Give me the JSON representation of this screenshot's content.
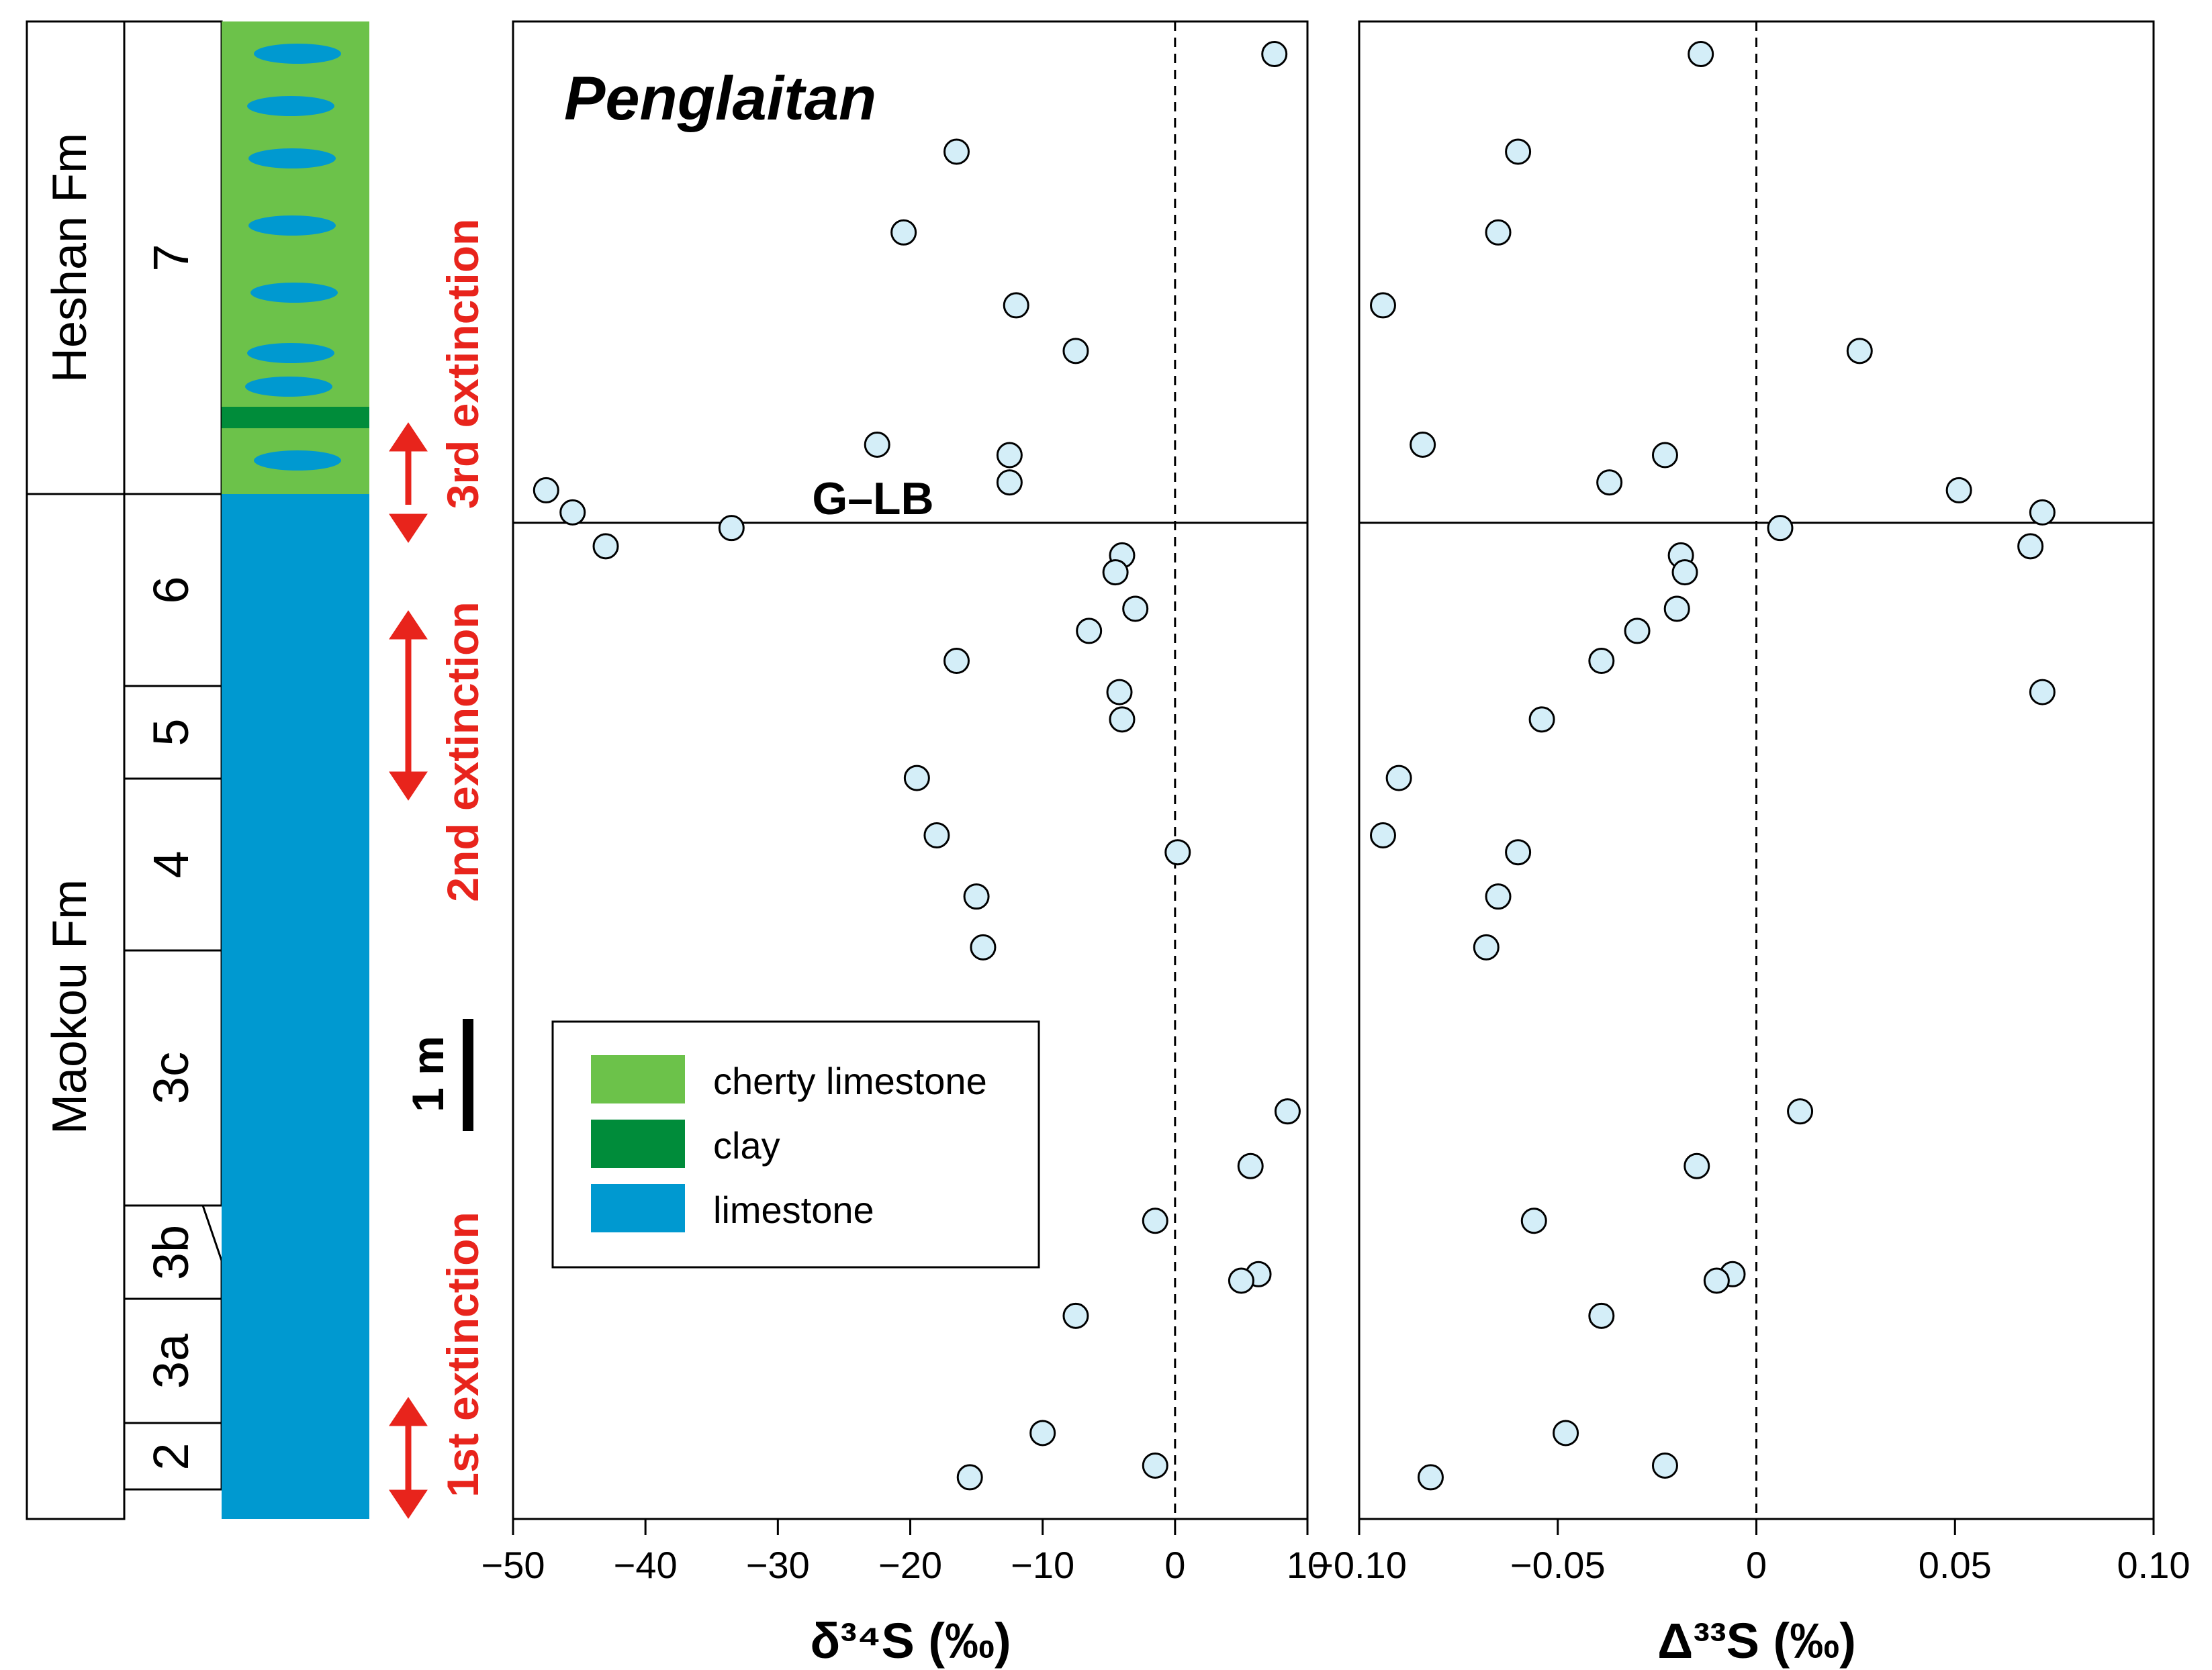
{
  "title": "Penglaitan",
  "boundary_label": "G–LB",
  "colors": {
    "cherty": "#6cc24a",
    "clay": "#008c3a",
    "limestone": "#0099d0",
    "extinction": "#e8241c",
    "marker_fill": "#d4eef8"
  },
  "stratigraphy": {
    "formations": [
      "Heshan Fm",
      "Maokou Fm"
    ],
    "beds": [
      "7",
      "6",
      "5",
      "4",
      "3c",
      "3b",
      "3a",
      "2"
    ]
  },
  "extinctions": [
    "3rd extinction",
    "2nd extinction",
    "1st extinction"
  ],
  "scale_bar": "1 m",
  "legend": [
    {
      "label": "cherty limestone",
      "color": "#6cc24a"
    },
    {
      "label": "clay",
      "color": "#008c3a"
    },
    {
      "label": "limestone",
      "color": "#0099d0"
    }
  ],
  "chart_data": [
    {
      "type": "scatter",
      "xlabel": "δ³⁴S (‰)",
      "ylabel": "",
      "xlim": [
        -50,
        10
      ],
      "xticks": [
        -50,
        -40,
        -30,
        -20,
        -10,
        0,
        10
      ],
      "xtick_labels": [
        "−50",
        "−40",
        "−30",
        "−20",
        "−10",
        "0",
        "10"
      ],
      "zero_reference": 0,
      "y_units": "meters above base of section (Maokou–Heshan column)",
      "ylim": [
        0,
        11.5
      ],
      "boundary_height": 7.65,
      "points": [
        {
          "x": 7.5,
          "y": 11.25
        },
        {
          "x": -16.5,
          "y": 10.5
        },
        {
          "x": -20.5,
          "y": 9.88
        },
        {
          "x": -12.0,
          "y": 9.32
        },
        {
          "x": -7.5,
          "y": 8.97
        },
        {
          "x": -22.5,
          "y": 8.25
        },
        {
          "x": -12.5,
          "y": 8.17
        },
        {
          "x": -12.5,
          "y": 7.96
        },
        {
          "x": -47.5,
          "y": 7.9
        },
        {
          "x": -45.5,
          "y": 7.73
        },
        {
          "x": -33.5,
          "y": 7.61
        },
        {
          "x": -43.0,
          "y": 7.47
        },
        {
          "x": -4.0,
          "y": 7.4
        },
        {
          "x": -4.5,
          "y": 7.27
        },
        {
          "x": -3.0,
          "y": 6.99
        },
        {
          "x": -6.5,
          "y": 6.82
        },
        {
          "x": -16.5,
          "y": 6.59
        },
        {
          "x": -4.2,
          "y": 6.35
        },
        {
          "x": -4.0,
          "y": 6.14
        },
        {
          "x": -19.5,
          "y": 5.69
        },
        {
          "x": -18.0,
          "y": 5.25
        },
        {
          "x": 0.2,
          "y": 5.12
        },
        {
          "x": -15.0,
          "y": 4.78
        },
        {
          "x": -14.5,
          "y": 4.39
        },
        {
          "x": 8.5,
          "y": 3.13
        },
        {
          "x": 5.7,
          "y": 2.71
        },
        {
          "x": -1.5,
          "y": 2.29
        },
        {
          "x": 6.3,
          "y": 1.88
        },
        {
          "x": 5.0,
          "y": 1.83
        },
        {
          "x": -7.5,
          "y": 1.56
        },
        {
          "x": -10.0,
          "y": 0.66
        },
        {
          "x": -1.5,
          "y": 0.41
        },
        {
          "x": -15.5,
          "y": 0.32
        }
      ]
    },
    {
      "type": "scatter",
      "xlabel": "Δ³³S (‰)",
      "ylabel": "",
      "xlim": [
        -0.1,
        0.1
      ],
      "xticks": [
        -0.1,
        -0.05,
        0,
        0.05,
        0.1
      ],
      "xtick_labels": [
        "−0.10",
        "−0.05",
        "0",
        "0.05",
        "0.10"
      ],
      "zero_reference": 0,
      "y_units": "meters above base of section (Maokou–Heshan column)",
      "ylim": [
        0,
        11.5
      ],
      "boundary_height": 7.65,
      "points": [
        {
          "x": -0.014,
          "y": 11.25
        },
        {
          "x": -0.06,
          "y": 10.5
        },
        {
          "x": -0.065,
          "y": 9.88
        },
        {
          "x": -0.094,
          "y": 9.32
        },
        {
          "x": 0.026,
          "y": 8.97
        },
        {
          "x": -0.084,
          "y": 8.25
        },
        {
          "x": -0.023,
          "y": 8.17
        },
        {
          "x": -0.037,
          "y": 7.96
        },
        {
          "x": 0.051,
          "y": 7.9
        },
        {
          "x": 0.072,
          "y": 7.73
        },
        {
          "x": 0.006,
          "y": 7.61
        },
        {
          "x": 0.069,
          "y": 7.47
        },
        {
          "x": -0.019,
          "y": 7.4
        },
        {
          "x": -0.018,
          "y": 7.27
        },
        {
          "x": -0.02,
          "y": 6.99
        },
        {
          "x": -0.03,
          "y": 6.82
        },
        {
          "x": -0.039,
          "y": 6.59
        },
        {
          "x": 0.072,
          "y": 6.35
        },
        {
          "x": -0.054,
          "y": 6.14
        },
        {
          "x": -0.09,
          "y": 5.69
        },
        {
          "x": -0.094,
          "y": 5.25
        },
        {
          "x": -0.06,
          "y": 5.12
        },
        {
          "x": -0.065,
          "y": 4.78
        },
        {
          "x": -0.068,
          "y": 4.39
        },
        {
          "x": 0.011,
          "y": 3.13
        },
        {
          "x": -0.015,
          "y": 2.71
        },
        {
          "x": -0.056,
          "y": 2.29
        },
        {
          "x": -0.006,
          "y": 1.88
        },
        {
          "x": -0.01,
          "y": 1.83
        },
        {
          "x": -0.039,
          "y": 1.56
        },
        {
          "x": -0.048,
          "y": 0.66
        },
        {
          "x": -0.023,
          "y": 0.41
        },
        {
          "x": -0.082,
          "y": 0.32
        }
      ]
    }
  ]
}
